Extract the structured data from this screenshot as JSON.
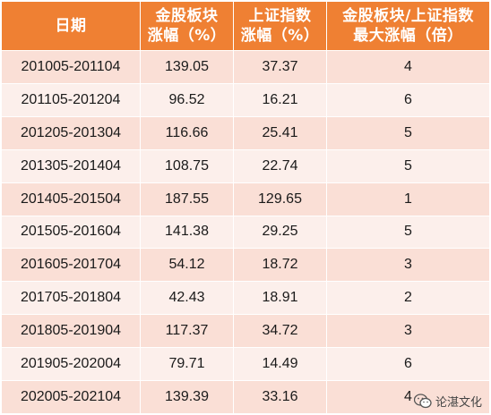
{
  "header": {
    "col_date": "日期",
    "col_gold_l1": "金股板块",
    "col_gold_l2": "涨幅（%）",
    "col_sh_l1": "上证指数",
    "col_sh_l2": "涨幅（%）",
    "col_ratio_l1": "金股板块/上证指数",
    "col_ratio_l2": "最大涨幅（倍）"
  },
  "rows": [
    {
      "period": "201005-201104",
      "gold": "139.05",
      "sh": "37.37",
      "ratio": "4"
    },
    {
      "period": "201105-201204",
      "gold": "96.52",
      "sh": "16.21",
      "ratio": "6"
    },
    {
      "period": "201205-201304",
      "gold": "116.66",
      "sh": "25.41",
      "ratio": "5"
    },
    {
      "period": "201305-201404",
      "gold": "108.75",
      "sh": "22.74",
      "ratio": "5"
    },
    {
      "period": "201405-201504",
      "gold": "187.55",
      "sh": "129.65",
      "ratio": "1"
    },
    {
      "period": "201505-201604",
      "gold": "141.38",
      "sh": "29.25",
      "ratio": "5"
    },
    {
      "period": "201605-201704",
      "gold": "54.12",
      "sh": "18.72",
      "ratio": "3"
    },
    {
      "period": "201705-201804",
      "gold": "42.43",
      "sh": "18.91",
      "ratio": "2"
    },
    {
      "period": "201805-201904",
      "gold": "117.37",
      "sh": "34.72",
      "ratio": "3"
    },
    {
      "period": "201905-202004",
      "gold": "79.71",
      "sh": "14.49",
      "ratio": "6"
    },
    {
      "period": "202005-202104",
      "gold": "139.39",
      "sh": "33.16",
      "ratio": "4"
    }
  ],
  "watermark": {
    "text": "论湛文化",
    "icon": "wechat-icon"
  },
  "colors": {
    "header_bg": "#ef8033",
    "row_odd": "#fadfd6",
    "row_even": "#fcefeb"
  }
}
